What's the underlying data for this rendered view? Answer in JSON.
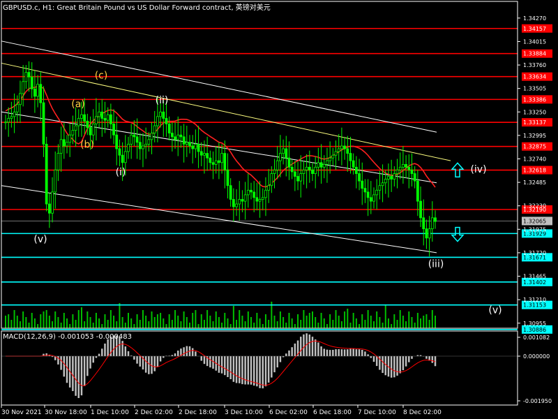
{
  "title": "GBPUSD.c, H1:  Great Britain Pound vs US Dollar Forward contract, 英镑对美元",
  "macd_title": "MACD(12,26,9) -0.001053 -0.000483",
  "colors": {
    "background": "#000000",
    "grid": "#ffffff",
    "candle": "#00ff00",
    "red_level": "#ff0000",
    "cyan_level": "#00ffff",
    "ma": "#ff2020",
    "channel": "#ffffff",
    "trendline": "#ffff80",
    "wave_orange": "#ffd040",
    "wave_white": "#ffffff",
    "macd_hist": "#c0c0c0",
    "macd_signal": "#ff0000",
    "volume": "#00c000"
  },
  "chart_data": {
    "type": "candlestick",
    "symbol": "GBPUSD.c",
    "timeframe": "H1",
    "price_range": [
      1.309,
      1.3436
    ],
    "y_ticks": [
      "1.34270",
      "1.34015",
      "1.33760",
      "1.33505",
      "1.33250",
      "1.32995",
      "1.32740",
      "1.32485",
      "1.32230",
      "1.31975",
      "1.31720",
      "1.31465",
      "1.31210",
      "1.30955"
    ],
    "x_labels": [
      "30 Nov 2021",
      "30 Nov 18:00",
      "1 Dec 10:00",
      "2 Dec 02:00",
      "2 Dec 18:00",
      "3 Dec 10:00",
      "6 Dec 02:00",
      "6 Dec 18:00",
      "7 Dec 10:00",
      "8 Dec 02:00"
    ],
    "red_levels": [
      "1.34157",
      "1.33884",
      "1.33634",
      "1.33386",
      "1.33137",
      "1.32875",
      "1.32618",
      "1.32190"
    ],
    "cyan_levels": [
      "1.31929",
      "1.31671",
      "1.31402",
      "1.31153",
      "1.30886"
    ],
    "current_price": "1.32065",
    "wave_labels": [
      {
        "text": "(a)",
        "color": "orange"
      },
      {
        "text": "(b)",
        "color": "orange"
      },
      {
        "text": "(c)",
        "color": "orange"
      },
      {
        "text": "(i)",
        "color": "white"
      },
      {
        "text": "(ii)",
        "color": "white"
      },
      {
        "text": "(iii)",
        "color": "white"
      },
      {
        "text": "(iv)",
        "color": "white"
      },
      {
        "text": "(v)",
        "color": "white"
      },
      {
        "text": "(v)",
        "color": "white"
      }
    ],
    "arrows": [
      {
        "direction": "up",
        "price": 1.3262
      },
      {
        "direction": "down",
        "price": 1.3192
      }
    ],
    "closes": [
      1.3314,
      1.3318,
      1.332,
      1.3325,
      1.3333,
      1.3345,
      1.3358,
      1.3368,
      1.3363,
      1.335,
      1.3342,
      1.3355,
      1.3335,
      1.329,
      1.3225,
      1.3215,
      1.3238,
      1.3262,
      1.328,
      1.3295,
      1.3288,
      1.3292,
      1.33,
      1.3305,
      1.331,
      1.3318,
      1.3322,
      1.3315,
      1.3308,
      1.33,
      1.3312,
      1.332,
      1.3325,
      1.3318,
      1.3316,
      1.3322,
      1.3312,
      1.33,
      1.3285,
      1.3278,
      1.327,
      1.3282,
      1.329,
      1.33,
      1.3298,
      1.3292,
      1.3285,
      1.3288,
      1.329,
      1.3295,
      1.3302,
      1.331,
      1.332,
      1.3325,
      1.3318,
      1.3312,
      1.3302,
      1.3298,
      1.3295,
      1.33,
      1.3298,
      1.329,
      1.3292,
      1.3288,
      1.3285,
      1.329,
      1.3282,
      1.3278,
      1.328,
      1.3275,
      1.327,
      1.3268,
      1.3272,
      1.327,
      1.328,
      1.3262,
      1.3245,
      1.323,
      1.3222,
      1.3225,
      1.323,
      1.3228,
      1.3235,
      1.324,
      1.3238,
      1.3232,
      1.3228,
      1.323,
      1.3232,
      1.324,
      1.3245,
      1.3258,
      1.3262,
      1.3272,
      1.328,
      1.3285,
      1.3275,
      1.3265,
      1.326,
      1.3255,
      1.325,
      1.3258,
      1.3262,
      1.3265,
      1.3262,
      1.3258,
      1.3265,
      1.327,
      1.3265,
      1.3268,
      1.3272,
      1.3275,
      1.3278,
      1.3282,
      1.3285,
      1.3288,
      1.3285,
      1.328,
      1.3272,
      1.3265,
      1.3258,
      1.325,
      1.3242,
      1.3238,
      1.3232,
      1.3228,
      1.3235,
      1.324,
      1.3245,
      1.3248,
      1.3252,
      1.3255,
      1.3252,
      1.3258,
      1.3262,
      1.3265,
      1.3268,
      1.3265,
      1.3262,
      1.3258,
      1.325,
      1.3228,
      1.321,
      1.3198,
      1.3188,
      1.3198,
      1.321,
      1.3206
    ]
  }
}
